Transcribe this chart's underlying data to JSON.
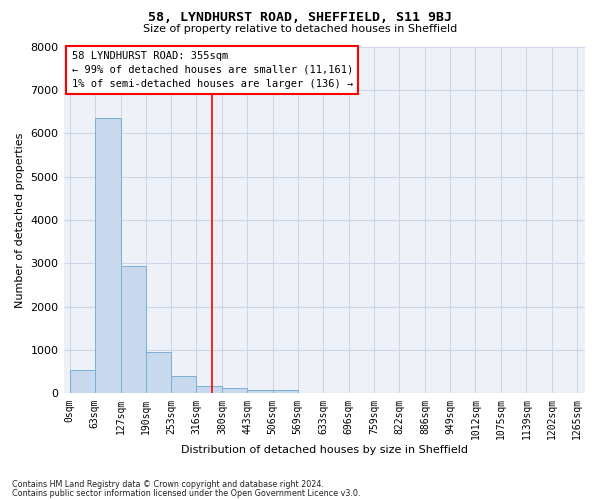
{
  "title1": "58, LYNDHURST ROAD, SHEFFIELD, S11 9BJ",
  "title2": "Size of property relative to detached houses in Sheffield",
  "xlabel": "Distribution of detached houses by size in Sheffield",
  "ylabel": "Number of detached properties",
  "annotation_line1": "58 LYNDHURST ROAD: 355sqm",
  "annotation_line2": "← 99% of detached houses are smaller (11,161)",
  "annotation_line3": "1% of semi-detached houses are larger (136) →",
  "bar_edges": [
    0,
    63,
    127,
    190,
    253,
    316,
    380,
    443,
    506,
    569,
    633,
    696,
    759,
    822,
    886,
    949,
    1012,
    1075,
    1139,
    1202,
    1265
  ],
  "bar_heights": [
    550,
    6350,
    2950,
    950,
    400,
    175,
    120,
    75,
    75,
    0,
    0,
    0,
    0,
    0,
    0,
    0,
    0,
    0,
    0,
    0
  ],
  "bar_color": "#c8d9ee",
  "bar_edgecolor": "#7aafd4",
  "red_line_x": 355,
  "ylim": [
    0,
    8000
  ],
  "yticks": [
    0,
    1000,
    2000,
    3000,
    4000,
    5000,
    6000,
    7000,
    8000
  ],
  "xlim_min": -15,
  "xlim_max": 1285,
  "grid_color": "#ccd6e8",
  "bg_color": "#eef2f8",
  "footnote1": "Contains HM Land Registry data © Crown copyright and database right 2024.",
  "footnote2": "Contains public sector information licensed under the Open Government Licence v3.0."
}
